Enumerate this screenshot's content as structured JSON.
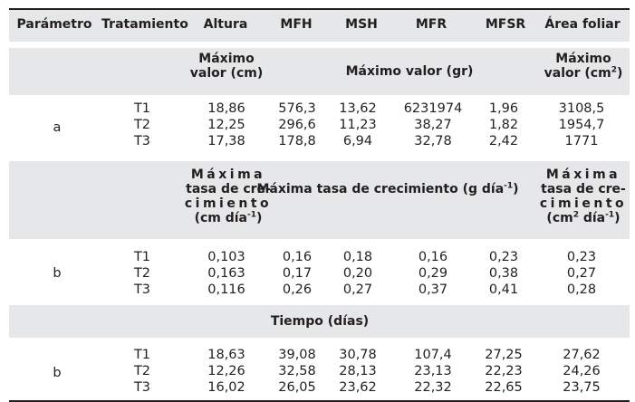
{
  "columns": [
    "Parámetro",
    "Tratamiento",
    "Altura",
    "MFH",
    "MSH",
    "MFR",
    "MFSR",
    "Área foliar"
  ],
  "section_a": {
    "unit_altura": [
      "Máximo",
      "valor (cm)"
    ],
    "unit_mid": "Máximo valor (gr)",
    "unit_area": [
      "Máximo",
      "valor (cm",
      "2",
      ")"
    ],
    "param": "a",
    "rows": [
      [
        "T1",
        "18,86",
        "576,3",
        "13,62",
        "6231974",
        "1,96",
        "3108,5"
      ],
      [
        "T2",
        "12,25",
        "296,6",
        "11,23",
        "38,27",
        "1,82",
        "1954,7"
      ],
      [
        "T3",
        "17,38",
        "178,8",
        "6,94",
        "32,78",
        "2,42",
        "1771"
      ]
    ]
  },
  "section_b": {
    "unit_altura": [
      "Máxima",
      "tasa de cre-",
      "cimiento",
      "(cm día",
      "-1",
      ")"
    ],
    "unit_mid": [
      "Máxima tasa de crecimiento (g día",
      "-1",
      ")"
    ],
    "unit_area": [
      "Máxima",
      "tasa de cre-",
      "cimiento",
      "(cm",
      "2",
      " día",
      "-1",
      ")"
    ],
    "param": "b",
    "rows": [
      [
        "T1",
        "0,103",
        "0,16",
        "0,18",
        "0,16",
        "0,23",
        "0,23"
      ],
      [
        "T2",
        "0,163",
        "0,17",
        "0,20",
        "0,29",
        "0,38",
        "0,27"
      ],
      [
        "T3",
        "0,116",
        "0,26",
        "0,27",
        "0,37",
        "0,41",
        "0,28"
      ]
    ]
  },
  "section_c": {
    "unit": "Tiempo (días)",
    "param": "b",
    "rows": [
      [
        "T1",
        "18,63",
        "39,08",
        "30,78",
        "107,4",
        "27,25",
        "27,62"
      ],
      [
        "T2",
        "12,26",
        "32,58",
        "28,13",
        "23,13",
        "22,23",
        "24,26"
      ],
      [
        "T3",
        "16,02",
        "26,05",
        "23,62",
        "22,32",
        "22,65",
        "23,75"
      ]
    ]
  },
  "colors": {
    "header_bg": "#e6e7e8",
    "text": "#231f20",
    "rule": "#231f20"
  }
}
